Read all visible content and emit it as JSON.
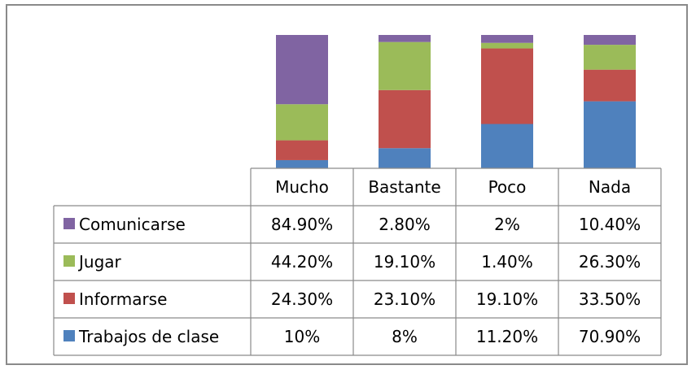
{
  "chart_data": {
    "type": "bar",
    "stacked": true,
    "categories": [
      "Mucho",
      "Bastante",
      "Poco",
      "Nada"
    ],
    "series": [
      {
        "name": "Trabajos de clase",
        "color": "#4f81bd",
        "values": [
          10,
          8,
          11.2,
          70.9
        ],
        "labels": [
          "10%",
          "8%",
          "11.20%",
          "70.90%"
        ]
      },
      {
        "name": "Informarse",
        "color": "#c0504d",
        "values": [
          24.3,
          23.1,
          19.1,
          33.5
        ],
        "labels": [
          "24.30%",
          "23.10%",
          "19.10%",
          "33.50%"
        ]
      },
      {
        "name": "Jugar",
        "color": "#9bbb59",
        "values": [
          44.2,
          19.1,
          1.4,
          26.3
        ],
        "labels": [
          "44.20%",
          "19.10%",
          "1.40%",
          "26.30%"
        ]
      },
      {
        "name": "Comunicarse",
        "color": "#8064a2",
        "values": [
          84.9,
          2.8,
          2,
          10.4
        ],
        "labels": [
          "84.90%",
          "2.80%",
          "2%",
          "10.40%"
        ]
      }
    ],
    "table_row_order": [
      "Comunicarse",
      "Jugar",
      "Informarse",
      "Trabajos de clase"
    ],
    "legend_placement": "data-table",
    "grid": false
  }
}
